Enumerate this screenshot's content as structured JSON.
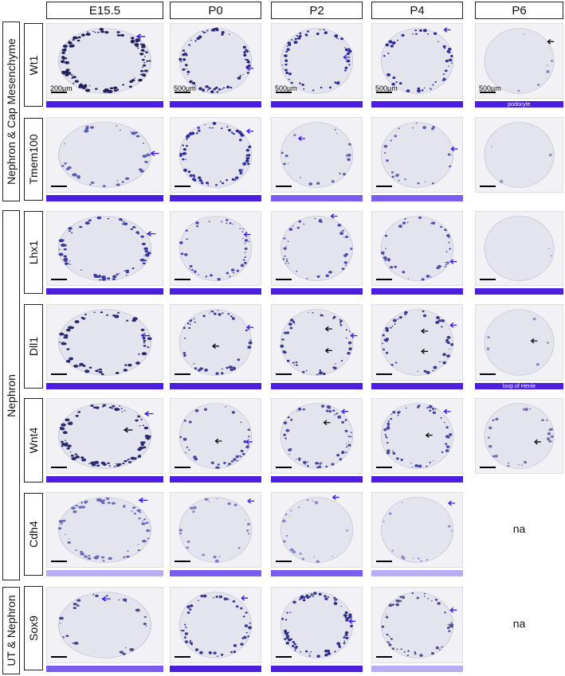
{
  "stages": [
    "E15.5",
    "P0",
    "P2",
    "P4",
    "P6"
  ],
  "groups": [
    {
      "label": "Nephron & Cap Mesenchyme"
    },
    {
      "label": "Nephron"
    },
    {
      "label": "UT & Nephron"
    }
  ],
  "rows": [
    {
      "gene": "Wt1",
      "cells": [
        {
          "scale": "200µm",
          "bar": "#4b1ee0",
          "bar_label": "",
          "dots": "#22225c",
          "density": 0.9,
          "na": false
        },
        {
          "scale": "500µm",
          "bar": "#4b1ee0",
          "bar_label": "",
          "dots": "#2a2a80",
          "density": 0.6,
          "na": false
        },
        {
          "scale": "500µm",
          "bar": "#4b1ee0",
          "bar_label": "",
          "dots": "#2e2e90",
          "density": 0.5,
          "na": false
        },
        {
          "scale": "500µm",
          "bar": "#4b1ee0",
          "bar_label": "",
          "dots": "#30309a",
          "density": 0.4,
          "na": false
        },
        {
          "scale": "500µm",
          "bar": "#4b1ee0",
          "bar_label": "podocyte",
          "dots": "#8a8ac0",
          "density": 0.05,
          "na": false
        }
      ]
    },
    {
      "gene": "Tmem100",
      "cells": [
        {
          "scale": "",
          "bar": "#4b1ee0",
          "bar_label": "",
          "dots": "#5a5ab0",
          "density": 0.3,
          "na": false
        },
        {
          "scale": "",
          "bar": "#4b1ee0",
          "bar_label": "",
          "dots": "#30309a",
          "density": 0.6,
          "na": false
        },
        {
          "scale": "",
          "bar": "#7a5cf0",
          "bar_label": "",
          "dots": "#6060b0",
          "density": 0.15,
          "na": false
        },
        {
          "scale": "",
          "bar": "#7a5cf0",
          "bar_label": "",
          "dots": "#6060b0",
          "density": 0.2,
          "na": false
        },
        {
          "scale": "",
          "bar": "",
          "bar_label": "",
          "dots": "#9a9ac8",
          "density": 0.03,
          "na": false
        }
      ]
    },
    {
      "gene": "Lhx1",
      "cells": [
        {
          "scale": "",
          "bar": "#4b1ee0",
          "bar_label": "",
          "dots": "#3a3aa0",
          "density": 0.55,
          "na": false
        },
        {
          "scale": "",
          "bar": "#4b1ee0",
          "bar_label": "",
          "dots": "#4a4ab0",
          "density": 0.35,
          "na": false
        },
        {
          "scale": "",
          "bar": "#4b1ee0",
          "bar_label": "",
          "dots": "#5050b0",
          "density": 0.3,
          "na": false
        },
        {
          "scale": "",
          "bar": "#4b1ee0",
          "bar_label": "",
          "dots": "#5050b0",
          "density": 0.3,
          "na": false
        },
        {
          "scale": "",
          "bar": "#4b1ee0",
          "bar_label": "",
          "dots": "#a0a0cc",
          "density": 0.02,
          "na": false
        }
      ]
    },
    {
      "gene": "Dll1",
      "cells": [
        {
          "scale": "",
          "bar": "#4b1ee0",
          "bar_label": "",
          "dots": "#2a2a70",
          "density": 0.45,
          "na": false
        },
        {
          "scale": "",
          "bar": "#4b1ee0",
          "bar_label": "",
          "dots": "#3a3a90",
          "density": 0.35,
          "na": false
        },
        {
          "scale": "",
          "bar": "#4b1ee0",
          "bar_label": "",
          "dots": "#3a3a90",
          "density": 0.4,
          "na": false
        },
        {
          "scale": "",
          "bar": "#4b1ee0",
          "bar_label": "",
          "dots": "#3a3a90",
          "density": 0.4,
          "na": false
        },
        {
          "scale": "",
          "bar": "#4b1ee0",
          "bar_label": "loop of Henle",
          "dots": "#8888b8",
          "density": 0.04,
          "na": false
        }
      ]
    },
    {
      "gene": "Wnt4",
      "cells": [
        {
          "scale": "",
          "bar": "#4b1ee0",
          "bar_label": "",
          "dots": "#2a2a70",
          "density": 0.75,
          "na": false
        },
        {
          "scale": "",
          "bar": "#4b1ee0",
          "bar_label": "",
          "dots": "#4a4aa0",
          "density": 0.3,
          "na": false
        },
        {
          "scale": "",
          "bar": "#4b1ee0",
          "bar_label": "",
          "dots": "#4a4aa0",
          "density": 0.45,
          "na": false
        },
        {
          "scale": "",
          "bar": "#4b1ee0",
          "bar_label": "",
          "dots": "#4a4aa0",
          "density": 0.45,
          "na": false
        },
        {
          "scale": "",
          "bar": "",
          "bar_label": "",
          "dots": "#7070a8",
          "density": 0.2,
          "na": false
        }
      ]
    },
    {
      "gene": "Cdh4",
      "cells": [
        {
          "scale": "",
          "bar": "#b9aef5",
          "bar_label": "",
          "dots": "#6a6ab8",
          "density": 0.5,
          "na": false
        },
        {
          "scale": "",
          "bar": "#7a5cf0",
          "bar_label": "",
          "dots": "#8080c0",
          "density": 0.2,
          "na": false
        },
        {
          "scale": "",
          "bar": "#7a5cf0",
          "bar_label": "",
          "dots": "#8888c4",
          "density": 0.15,
          "na": false
        },
        {
          "scale": "",
          "bar": "#b9aef5",
          "bar_label": "",
          "dots": "#9090c8",
          "density": 0.1,
          "na": false
        },
        {
          "scale": "",
          "bar": "",
          "bar_label": "",
          "dots": "",
          "density": 0,
          "na": true,
          "na_text": "na"
        }
      ]
    },
    {
      "gene": "Sox9",
      "cells": [
        {
          "scale": "",
          "bar": "#7a5cf0",
          "bar_label": "",
          "dots": "#4a4a90",
          "density": 0.2,
          "na": false
        },
        {
          "scale": "",
          "bar": "#4b1ee0",
          "bar_label": "",
          "dots": "#3a3a90",
          "density": 0.45,
          "na": false
        },
        {
          "scale": "",
          "bar": "#4b1ee0",
          "bar_label": "",
          "dots": "#2e2e88",
          "density": 0.7,
          "na": false
        },
        {
          "scale": "",
          "bar": "#b9aef5",
          "bar_label": "",
          "dots": "#505090",
          "density": 0.4,
          "na": false
        },
        {
          "scale": "",
          "bar": "",
          "bar_label": "",
          "dots": "",
          "density": 0,
          "na": true,
          "na_text": "na"
        }
      ]
    }
  ],
  "colors": {
    "arrow_blue": "#3a1ee6",
    "arrow_black": "#111111",
    "tissue": "#e4e4ee",
    "tissue_edge": "#c8c8da"
  }
}
